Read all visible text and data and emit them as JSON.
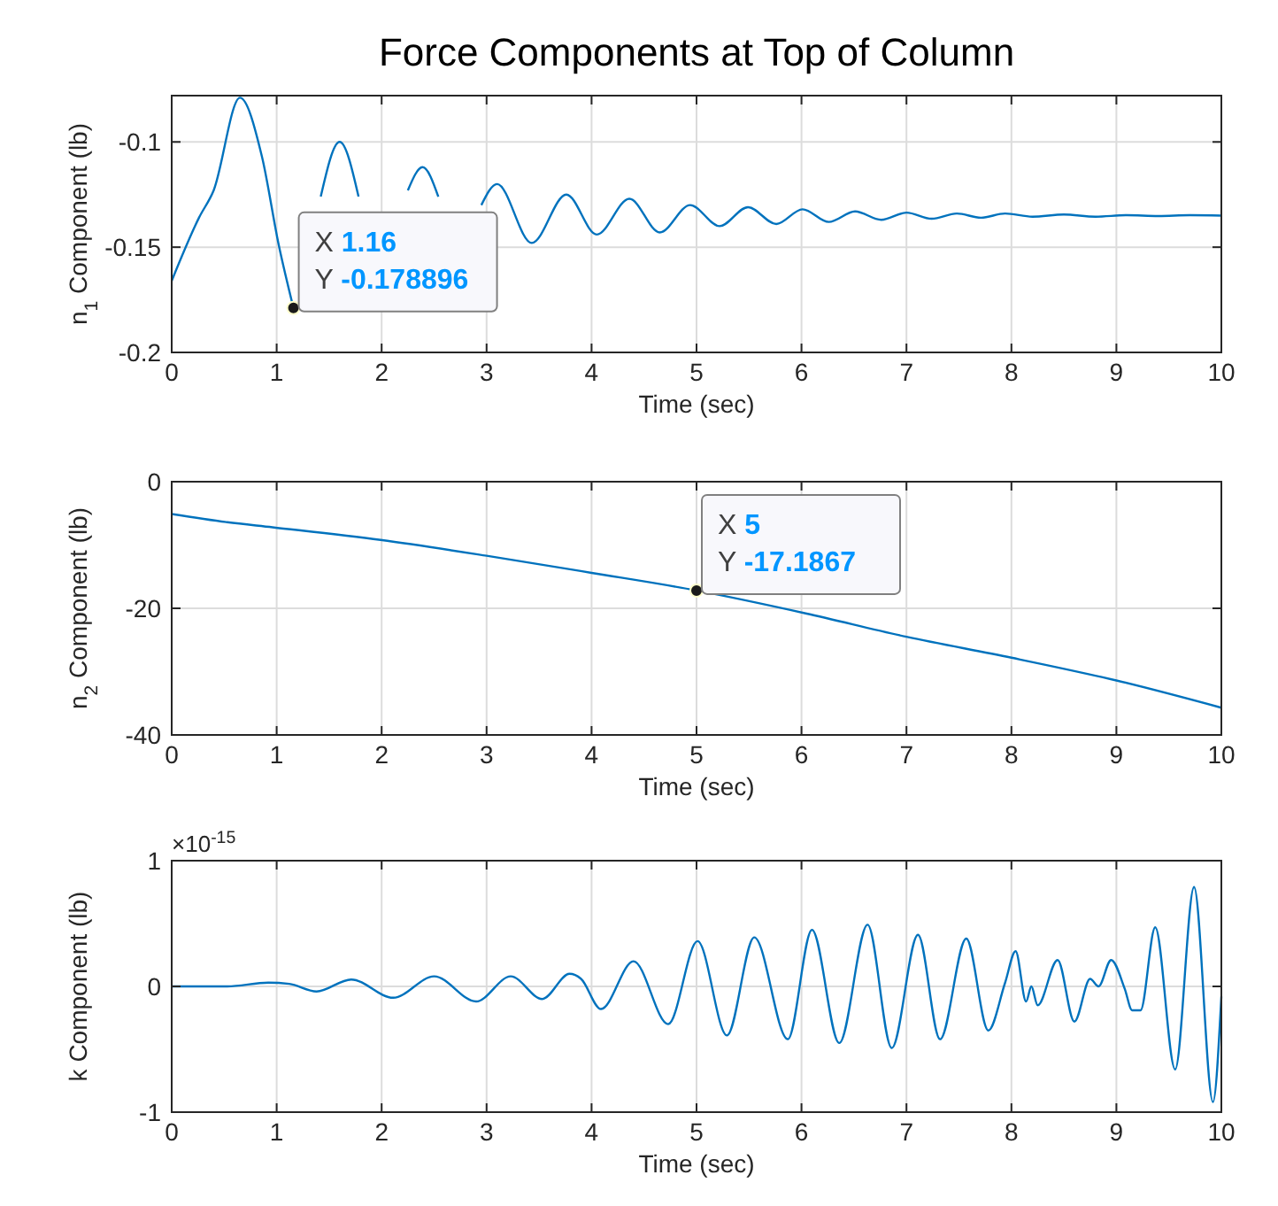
{
  "chart_data": [
    {
      "type": "line",
      "title": "Force Components at Top of Column",
      "xlabel": "Time (sec)",
      "ylabel": "n$_{1}$ Component (lb)",
      "xlim": [
        0,
        10
      ],
      "ylim": [
        -0.2,
        -0.078
      ],
      "xticks": [
        0,
        1,
        2,
        3,
        4,
        5,
        6,
        7,
        8,
        9,
        10
      ],
      "yticks": [
        -0.2,
        -0.15,
        -0.1
      ],
      "grid": true,
      "annotations": [
        {
          "text": "X 1.16\nY -0.178896",
          "x": 1.16,
          "y": -0.178896
        }
      ],
      "series": [
        {
          "color": "#0072bd",
          "x": [
            0,
            0.26,
            0.4,
            0.65,
            0.86,
            1.02,
            1.16,
            1.3,
            1.42,
            1.6,
            1.78,
            2.0,
            2.25,
            2.39,
            2.54,
            2.75,
            2.95,
            3.1,
            3.43,
            3.76,
            4.05,
            4.36,
            4.65,
            4.94,
            5.22,
            5.49,
            5.76,
            6.01,
            6.26,
            6.51,
            6.76,
            7.0,
            7.24,
            7.48,
            7.71,
            7.94,
            8.2,
            8.5,
            8.8,
            9.1,
            9.4,
            9.7,
            10
          ],
          "values": [
            -0.166,
            -0.136,
            -0.123,
            -0.079,
            -0.107,
            -0.149,
            -0.178896,
            null,
            -0.126,
            -0.1,
            -0.126,
            null,
            -0.123,
            -0.112,
            -0.126,
            null,
            -0.13,
            -0.12,
            -0.148,
            -0.125,
            -0.144,
            -0.127,
            -0.143,
            -0.13,
            -0.14,
            -0.131,
            -0.139,
            -0.132,
            -0.138,
            -0.133,
            -0.137,
            -0.1336,
            -0.1365,
            -0.134,
            -0.136,
            -0.134,
            -0.1355,
            -0.1345,
            -0.1355,
            -0.1348,
            -0.1352,
            -0.1348,
            -0.135
          ]
        }
      ]
    },
    {
      "type": "line",
      "xlabel": "Time (sec)",
      "ylabel": "n$_{2}$ Component (lb)",
      "xlim": [
        0,
        10
      ],
      "ylim": [
        -40,
        0
      ],
      "xticks": [
        0,
        1,
        2,
        3,
        4,
        5,
        6,
        7,
        8,
        9,
        10
      ],
      "yticks": [
        -40,
        -20,
        0
      ],
      "grid": true,
      "annotations": [
        {
          "text": "X 5\nY -17.1867",
          "x": 5,
          "y": -17.1867
        }
      ],
      "series": [
        {
          "color": "#0072bd",
          "x": [
            0,
            0.53,
            0.96,
            1.99,
            3.0,
            4.0,
            5,
            6.04,
            7,
            8,
            9,
            10
          ],
          "values": [
            -5.1,
            -6.4,
            -7.2,
            -9.2,
            -11.7,
            -14.4,
            -17.1867,
            -20.8,
            -24.5,
            -27.8,
            -31.4,
            -35.7
          ]
        }
      ]
    },
    {
      "type": "line",
      "xlabel": "Time (sec)",
      "ylabel": "k Component (lb)",
      "xlim": [
        0,
        10
      ],
      "ylim": [
        -1,
        1
      ],
      "xticks": [
        0,
        1,
        2,
        3,
        4,
        5,
        6,
        7,
        8,
        9,
        10
      ],
      "yticks": [
        -1,
        0,
        1
      ],
      "grid": true,
      "annotations": [
        "×10$^{-15}$"
      ],
      "series": [
        {
          "color": "#0072bd",
          "x": [
            0,
            0.53,
            0.92,
            1.12,
            1.38,
            1.71,
            2.11,
            2.5,
            2.9,
            3.23,
            3.53,
            3.79,
            3.9,
            4.09,
            4.4,
            4.73,
            5.01,
            5.29,
            5.55,
            5.87,
            6.1,
            6.36,
            6.63,
            6.86,
            7.11,
            7.32,
            7.57,
            7.78,
            7.94,
            8.04,
            8.14,
            8.19,
            8.25,
            8.44,
            8.6,
            8.75,
            8.83,
            8.95,
            9.08,
            9.15,
            9.23,
            9.37,
            9.56,
            9.74,
            9.92,
            10
          ],
          "values": [
            0,
            0,
            0.03,
            0.02,
            -0.04,
            0.055,
            -0.09,
            0.08,
            -0.12,
            0.08,
            -0.1,
            0.1,
            0.06,
            -0.18,
            0.2,
            -0.3,
            0.36,
            -0.39,
            0.39,
            -0.42,
            0.45,
            -0.45,
            0.49,
            -0.49,
            0.41,
            -0.42,
            0.38,
            -0.35,
            0.03,
            0.28,
            -0.12,
            0,
            -0.15,
            0.21,
            -0.28,
            0.06,
            0,
            0.21,
            -0.02,
            -0.19,
            -0.19,
            0.47,
            -0.66,
            0.79,
            -0.92,
            -0.08
          ]
        }
      ]
    }
  ]
}
